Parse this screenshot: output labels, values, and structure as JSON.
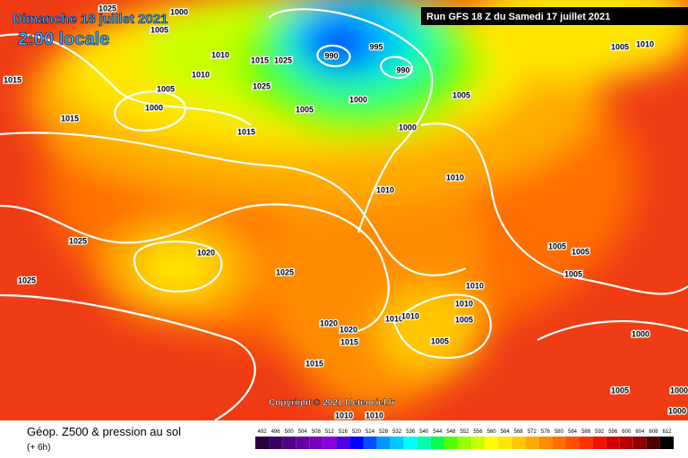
{
  "header": {
    "date": "Dimanche 18 juillet 2021",
    "time": "2:00 locale",
    "run": "Run GFS 18 Z du Samedi 17 juillet 2021"
  },
  "copyright": "Copyright © 2021 Meteociel.fr",
  "footer": {
    "title": "Géop. Z500 & pression au sol",
    "subtitle": "(+ 6h)"
  },
  "isobar_labels": [
    "1025",
    "1000",
    "1005",
    "1015",
    "1010",
    "1010",
    "1015",
    "1025",
    "1025",
    "1005",
    "1000",
    "1015",
    "1015",
    "1005",
    "990",
    "995",
    "990",
    "1000",
    "1000",
    "1005",
    "1010",
    "1010",
    "1005",
    "1010",
    "1025",
    "1020",
    "1025",
    "1025",
    "1005",
    "1005",
    "1005",
    "1010",
    "1010",
    "1010",
    "1010",
    "1005",
    "1020",
    "1020",
    "1015",
    "1005",
    "1015",
    "1000",
    "1010",
    "1010",
    "1005",
    "1000",
    "1000"
  ],
  "scale": {
    "values": [
      492,
      496,
      500,
      504,
      508,
      512,
      516,
      520,
      524,
      528,
      532,
      536,
      540,
      544,
      548,
      552,
      556,
      560,
      564,
      568,
      572,
      576,
      580,
      584,
      588,
      592,
      596,
      600,
      604,
      608,
      612
    ],
    "colors": [
      "#28003c",
      "#3c0064",
      "#500082",
      "#6400a0",
      "#7800be",
      "#8c00dc",
      "#5000dc",
      "#0000ff",
      "#0050ff",
      "#0096ff",
      "#00c8ff",
      "#00ffff",
      "#00ffaa",
      "#00ff50",
      "#50ff00",
      "#96ff00",
      "#c8ff00",
      "#ffff00",
      "#ffe600",
      "#ffc800",
      "#ffaa00",
      "#ff8c00",
      "#ff6e00",
      "#ff5000",
      "#ff3200",
      "#f01400",
      "#d20000",
      "#b40000",
      "#8c0000",
      "#500000",
      "#000000"
    ]
  }
}
